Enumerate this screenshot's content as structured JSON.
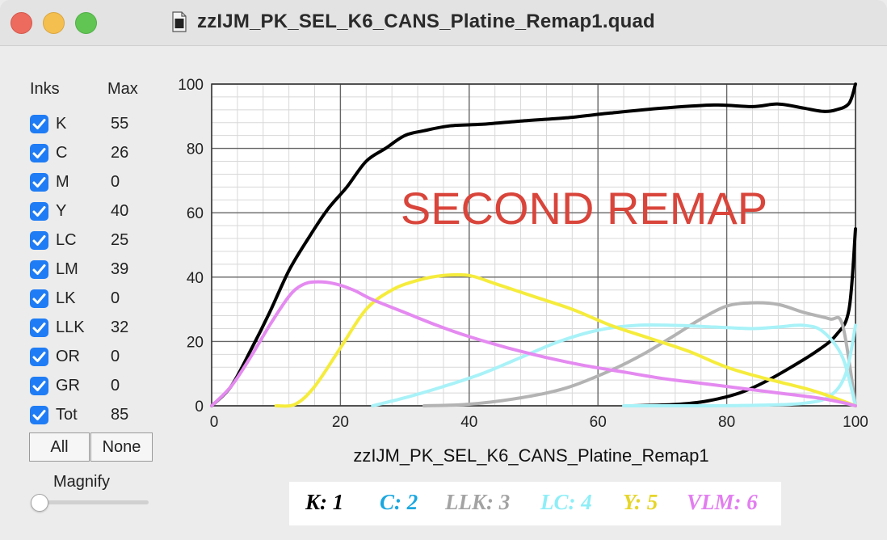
{
  "window": {
    "title": "zzIJM_PK_SEL_K6_CANS_Platine_Remap1.quad",
    "icons": [
      "close-button",
      "minimize-button",
      "maximize-button",
      "document-icon"
    ]
  },
  "inks_panel": {
    "header_inks": "Inks",
    "header_max": "Max",
    "rows": [
      {
        "name": "K",
        "max": "55",
        "checked": true
      },
      {
        "name": "C",
        "max": "26",
        "checked": true
      },
      {
        "name": "M",
        "max": "0",
        "checked": true
      },
      {
        "name": "Y",
        "max": "40",
        "checked": true
      },
      {
        "name": "LC",
        "max": "25",
        "checked": true
      },
      {
        "name": "LM",
        "max": "39",
        "checked": true
      },
      {
        "name": "LK",
        "max": "0",
        "checked": true
      },
      {
        "name": "LLK",
        "max": "32",
        "checked": true
      },
      {
        "name": "OR",
        "max": "0",
        "checked": true
      },
      {
        "name": "GR",
        "max": "0",
        "checked": true
      },
      {
        "name": "Tot",
        "max": "85",
        "checked": true
      }
    ],
    "all_button": "All",
    "none_button": "None",
    "magnify_label": "Magnify",
    "magnify_value": 0
  },
  "chart_data": {
    "type": "line",
    "title": "",
    "xlabel": "zzIJM_PK_SEL_K6_CANS_Platine_Remap1",
    "ylabel": "",
    "xlim": [
      0,
      100
    ],
    "ylim": [
      0,
      100
    ],
    "xticks": [
      0,
      20,
      40,
      60,
      80,
      100
    ],
    "yticks": [
      0,
      20,
      40,
      60,
      80,
      100
    ],
    "grid": true,
    "annotation": "SECOND REMAP",
    "annotation_color": "#d9453b",
    "series": [
      {
        "color": "#000000",
        "points": [
          [
            0,
            0
          ],
          [
            3,
            6
          ],
          [
            6,
            17
          ],
          [
            9,
            29
          ],
          [
            12,
            42
          ],
          [
            15,
            52
          ],
          [
            18,
            61
          ],
          [
            21,
            68
          ],
          [
            24,
            76
          ],
          [
            27,
            80
          ],
          [
            30,
            84
          ],
          [
            33,
            85.5
          ],
          [
            37,
            87
          ],
          [
            42,
            87.5
          ],
          [
            48,
            88.5
          ],
          [
            55,
            89.5
          ],
          [
            62,
            91
          ],
          [
            70,
            92.5
          ],
          [
            78,
            93.5
          ],
          [
            84,
            93
          ],
          [
            88,
            93.8
          ],
          [
            92,
            92.5
          ],
          [
            95,
            91.5
          ],
          [
            97,
            92
          ],
          [
            99,
            94
          ],
          [
            100,
            100
          ]
        ]
      },
      {
        "color": "#000000",
        "points": [
          [
            65,
            0
          ],
          [
            72,
            0.4
          ],
          [
            77,
            1.5
          ],
          [
            82,
            4
          ],
          [
            86,
            7.5
          ],
          [
            90,
            12
          ],
          [
            94,
            17
          ],
          [
            97,
            22
          ],
          [
            99,
            30
          ],
          [
            100,
            55
          ]
        ]
      },
      {
        "color": "#b3b3b3",
        "points": [
          [
            33,
            0
          ],
          [
            40,
            0.5
          ],
          [
            48,
            2.5
          ],
          [
            55,
            5.5
          ],
          [
            62,
            11
          ],
          [
            67,
            16
          ],
          [
            72,
            22
          ],
          [
            76,
            27
          ],
          [
            80,
            31
          ],
          [
            84,
            32
          ],
          [
            88,
            31.5
          ],
          [
            92,
            29
          ],
          [
            96,
            27
          ],
          [
            98,
            25
          ],
          [
            100,
            0
          ]
        ]
      },
      {
        "color": "#a8f2f8",
        "points": [
          [
            25,
            0
          ],
          [
            30,
            2.5
          ],
          [
            36,
            6
          ],
          [
            42,
            10
          ],
          [
            48,
            15
          ],
          [
            54,
            20
          ],
          [
            60,
            23.5
          ],
          [
            66,
            25
          ],
          [
            72,
            25
          ],
          [
            78,
            24.5
          ],
          [
            84,
            24
          ],
          [
            88,
            24.5
          ],
          [
            92,
            25
          ],
          [
            95,
            23
          ],
          [
            98,
            15
          ],
          [
            100,
            0
          ]
        ]
      },
      {
        "color": "#a8f2f8",
        "points": [
          [
            64,
            0
          ],
          [
            75,
            0
          ],
          [
            85,
            0.2
          ],
          [
            92,
            0.8
          ],
          [
            96,
            3
          ],
          [
            98.5,
            10
          ],
          [
            100,
            25
          ]
        ]
      },
      {
        "color": "#f5ec3c",
        "points": [
          [
            10,
            0
          ],
          [
            13,
            0.5
          ],
          [
            16,
            6
          ],
          [
            20,
            18
          ],
          [
            24,
            30
          ],
          [
            28,
            36
          ],
          [
            32,
            39
          ],
          [
            36,
            40.5
          ],
          [
            40,
            40.5
          ],
          [
            44,
            38
          ],
          [
            50,
            34
          ],
          [
            56,
            30
          ],
          [
            62,
            25
          ],
          [
            68,
            21
          ],
          [
            74,
            17
          ],
          [
            80,
            12
          ],
          [
            86,
            8.5
          ],
          [
            92,
            5.5
          ],
          [
            96,
            3
          ],
          [
            100,
            0
          ]
        ]
      },
      {
        "color": "#e48af0",
        "points": [
          [
            0,
            0
          ],
          [
            3,
            6
          ],
          [
            6,
            15
          ],
          [
            9,
            25
          ],
          [
            12,
            34
          ],
          [
            14,
            37.5
          ],
          [
            16,
            38.5
          ],
          [
            19,
            38
          ],
          [
            22,
            36
          ],
          [
            25,
            33
          ],
          [
            30,
            29
          ],
          [
            35,
            25
          ],
          [
            40,
            21.5
          ],
          [
            46,
            18
          ],
          [
            52,
            15
          ],
          [
            58,
            12.5
          ],
          [
            64,
            10.5
          ],
          [
            70,
            8.5
          ],
          [
            76,
            7
          ],
          [
            82,
            5.5
          ],
          [
            88,
            4
          ],
          [
            94,
            2.5
          ],
          [
            98,
            1
          ],
          [
            100,
            0
          ]
        ]
      }
    ]
  },
  "legend": {
    "items": [
      {
        "label": "K: 1",
        "color": "#000000"
      },
      {
        "label": "C: 2",
        "color": "#1aa7e0"
      },
      {
        "label": "LLK: 3",
        "color": "#a3a3a3"
      },
      {
        "label": "LC: 4",
        "color": "#8eeef7"
      },
      {
        "label": "Y: 5",
        "color": "#e6d52a"
      },
      {
        "label": "VLM: 6",
        "color": "#e27ef0"
      }
    ]
  }
}
